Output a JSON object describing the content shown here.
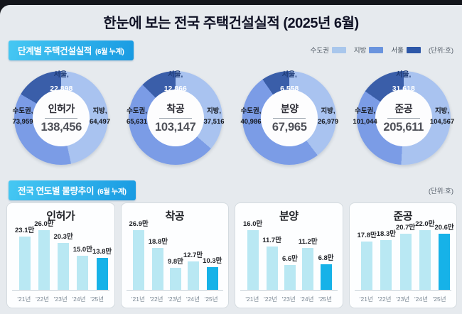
{
  "page_title": "한눈에 보는 전국 주택건설실적 (2025년 6월)",
  "section_stage": {
    "badge": "단계별 주택건설실적",
    "badge_suffix": "(6월 누계)",
    "unit_note": "(단위:호)",
    "legend": [
      {
        "name": "수도권",
        "color": "#a9c7ec"
      },
      {
        "name": "지방",
        "color": "#6a94de"
      },
      {
        "name": "서울",
        "color": "#2d57a8"
      }
    ]
  },
  "section_trend": {
    "badge": "전국 연도별 물량추이",
    "badge_suffix": "(6월 누계)",
    "unit_note": "(단위:호)"
  },
  "colors": {
    "donut_local": "#a9c3f0",
    "donut_capital": "#7b9ce6",
    "donut_seoul": "#3a5ea9",
    "bar_normal": "#b9e8f3",
    "bar_highlight": "#16b2e8"
  },
  "chart_data": [
    {
      "type": "donut",
      "title": "인허가",
      "total": 138456,
      "total_display": "138,456",
      "regions": {
        "capital": {
          "label": "수도권,",
          "value": 73959,
          "display": "73,959"
        },
        "local": {
          "label": "지방,",
          "value": 64497,
          "display": "64,497"
        },
        "seoul": {
          "label": "서울,",
          "value": 22898,
          "display": "22,898"
        }
      }
    },
    {
      "type": "donut",
      "title": "착공",
      "total": 103147,
      "total_display": "103,147",
      "regions": {
        "capital": {
          "label": "수도권,",
          "value": 65631,
          "display": "65,631"
        },
        "local": {
          "label": "지방,",
          "value": 37516,
          "display": "37,516"
        },
        "seoul": {
          "label": "서울,",
          "value": 12866,
          "display": "12,866"
        }
      }
    },
    {
      "type": "donut",
      "title": "분양",
      "total": 67965,
      "total_display": "67,965",
      "regions": {
        "capital": {
          "label": "수도권,",
          "value": 40986,
          "display": "40,986"
        },
        "local": {
          "label": "지방,",
          "value": 26979,
          "display": "26,979"
        },
        "seoul": {
          "label": "서울,",
          "value": 6558,
          "display": "6,558"
        }
      }
    },
    {
      "type": "donut",
      "title": "준공",
      "total": 205611,
      "total_display": "205,611",
      "regions": {
        "capital": {
          "label": "수도권,",
          "value": 101044,
          "display": "101,044"
        },
        "local": {
          "label": "지방,",
          "value": 104567,
          "display": "104,567"
        },
        "seoul": {
          "label": "서울,",
          "value": 31618,
          "display": "31,618"
        }
      }
    },
    {
      "type": "bar",
      "title": "인허가",
      "categories": [
        "'21년",
        "'22년",
        "'23년",
        "'24년",
        "'25년"
      ],
      "values": [
        23.1,
        26.0,
        20.3,
        15.0,
        13.8
      ],
      "value_labels": [
        "23.1만",
        "26.0만",
        "20.3만",
        "15.0만",
        "13.8만"
      ],
      "unit": "만",
      "highlight_index": 4
    },
    {
      "type": "bar",
      "title": "착공",
      "categories": [
        "'21년",
        "'22년",
        "'23년",
        "'24년",
        "'25년"
      ],
      "values": [
        26.9,
        18.8,
        9.8,
        12.7,
        10.3
      ],
      "value_labels": [
        "26.9만",
        "18.8만",
        "9.8만",
        "12.7만",
        "10.3만"
      ],
      "unit": "만",
      "highlight_index": 4
    },
    {
      "type": "bar",
      "title": "분양",
      "categories": [
        "'21년",
        "'22년",
        "'23년",
        "'24년",
        "'25년"
      ],
      "values": [
        16.0,
        11.7,
        6.6,
        11.2,
        6.8
      ],
      "value_labels": [
        "16.0만",
        "11.7만",
        "6.6만",
        "11.2만",
        "6.8만"
      ],
      "unit": "만",
      "highlight_index": 4
    },
    {
      "type": "bar",
      "title": "준공",
      "categories": [
        "'21년",
        "'22년",
        "'23년",
        "'24년",
        "'25년"
      ],
      "values": [
        17.8,
        18.3,
        20.7,
        22.0,
        20.6
      ],
      "value_labels": [
        "17.8만",
        "18.3만",
        "20.7만",
        "22.0만",
        "20.6만"
      ],
      "unit": "만",
      "highlight_index": 4
    }
  ]
}
